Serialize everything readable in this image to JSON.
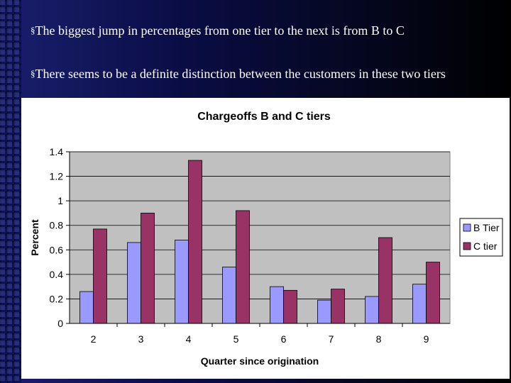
{
  "slide": {
    "bullets": [
      {
        "marker": "§",
        "text": "The biggest jump in percentages from one tier to the next is from B to C"
      },
      {
        "marker": "§",
        "text": "There seems to be a definite distinction between the customers in these two tiers"
      }
    ]
  },
  "chart_data": {
    "type": "bar",
    "title": "Chargeoffs B and C tiers",
    "xlabel": "Quarter since origination",
    "ylabel": "Percent",
    "categories": [
      "2",
      "3",
      "4",
      "5",
      "6",
      "7",
      "8",
      "9"
    ],
    "series": [
      {
        "name": "B Tier",
        "color": "#9999ff",
        "values": [
          0.26,
          0.66,
          0.68,
          0.46,
          0.3,
          0.19,
          0.22,
          0.32
        ]
      },
      {
        "name": "C tier",
        "color": "#993366",
        "values": [
          0.77,
          0.9,
          1.33,
          0.92,
          0.27,
          0.28,
          0.7,
          0.5
        ]
      }
    ],
    "ylim": [
      0,
      1.4
    ],
    "yticks": [
      "0",
      "0.2",
      "0.4",
      "0.6",
      "0.8",
      "1",
      "1.2",
      "1.4"
    ],
    "grid": true,
    "plot_background": "#c0c0c0",
    "legend_position": "right"
  }
}
